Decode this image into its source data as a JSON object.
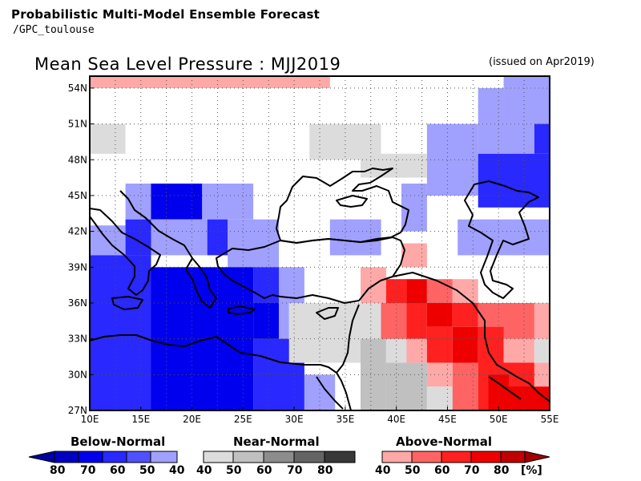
{
  "header": {
    "title": "Probabilistic Multi-Model Ensemble Forecast",
    "subtitle": "/GPC_toulouse"
  },
  "map": {
    "title": "Mean Sea Level Pressure : MJJ2019",
    "issued": "(issued on Apr2019)",
    "lon_range": [
      10,
      55
    ],
    "lat_range": [
      27,
      55
    ],
    "lon_ticks": [
      "10E",
      "15E",
      "20E",
      "25E",
      "30E",
      "35E",
      "40E",
      "45E",
      "50E",
      "55E"
    ],
    "lat_ticks": [
      "54N",
      "51N",
      "48N",
      "45N",
      "42N",
      "39N",
      "36N",
      "33N",
      "30N",
      "27N"
    ],
    "grid_step_lon": 2.5,
    "grid_step_lat": 3,
    "lon_tick_values": [
      10,
      15,
      20,
      25,
      30,
      35,
      40,
      45,
      50,
      55
    ],
    "lat_tick_values": [
      54,
      51,
      48,
      45,
      42,
      39,
      36,
      33,
      30,
      27
    ]
  },
  "colors": {
    "below": {
      "40": "#a0a0ff",
      "50": "#5050ff",
      "60": "#2828ff",
      "70": "#0000ee",
      "80": "#0000c0"
    },
    "near": {
      "40": "#dcdcdc",
      "50": "#c0c0c0",
      "60": "#8c8c8c",
      "70": "#646464",
      "80": "#383838"
    },
    "above": {
      "40": "#ffa8a8",
      "50": "#ff6464",
      "60": "#ff2020",
      "70": "#ee0000",
      "80": "#c00000"
    }
  },
  "chart_data": {
    "type": "heatmap",
    "cell_size_deg": [
      2.5,
      3
    ],
    "cells": [
      {
        "lon": [
          10,
          33.5
        ],
        "lat": [
          54,
          55
        ],
        "cat": "above",
        "p": 40
      },
      {
        "lon": [
          50.5,
          55
        ],
        "lat": [
          54,
          55
        ],
        "cat": "below",
        "p": 40
      },
      {
        "lon": [
          48,
          55
        ],
        "lat": [
          51,
          54
        ],
        "cat": "below",
        "p": 40
      },
      {
        "lon": [
          10,
          13.5
        ],
        "lat": [
          48.5,
          51
        ],
        "cat": "near",
        "p": 40
      },
      {
        "lon": [
          31.5,
          38.5
        ],
        "lat": [
          48,
          51
        ],
        "cat": "near",
        "p": 40
      },
      {
        "lon": [
          43,
          48
        ],
        "lat": [
          45,
          51
        ],
        "cat": "below",
        "p": 40
      },
      {
        "lon": [
          48,
          53.5
        ],
        "lat": [
          48.5,
          51
        ],
        "cat": "below",
        "p": 40
      },
      {
        "lon": [
          53.5,
          55
        ],
        "lat": [
          48.5,
          51
        ],
        "cat": "below",
        "p": 60
      },
      {
        "lon": [
          36.5,
          43
        ],
        "lat": [
          46.5,
          48.5
        ],
        "cat": "near",
        "p": 40
      },
      {
        "lon": [
          48,
          55
        ],
        "lat": [
          44,
          48.5
        ],
        "cat": "below",
        "p": 60
      },
      {
        "lon": [
          40.5,
          43
        ],
        "lat": [
          42,
          46
        ],
        "cat": "below",
        "p": 40
      },
      {
        "lon": [
          13.5,
          16
        ],
        "lat": [
          43,
          46
        ],
        "cat": "below",
        "p": 40
      },
      {
        "lon": [
          16,
          21
        ],
        "lat": [
          43,
          46
        ],
        "cat": "below",
        "p": 70
      },
      {
        "lon": [
          21,
          26
        ],
        "lat": [
          43,
          46
        ],
        "cat": "below",
        "p": 40
      },
      {
        "lon": [
          10,
          13.5
        ],
        "lat": [
          40,
          42.5
        ],
        "cat": "below",
        "p": 40
      },
      {
        "lon": [
          13.5,
          16
        ],
        "lat": [
          40,
          43
        ],
        "cat": "below",
        "p": 60
      },
      {
        "lon": [
          16,
          21.5
        ],
        "lat": [
          40,
          43
        ],
        "cat": "below",
        "p": 40
      },
      {
        "lon": [
          21.5,
          23.5
        ],
        "lat": [
          40,
          43
        ],
        "cat": "below",
        "p": 60
      },
      {
        "lon": [
          23.5,
          28.5
        ],
        "lat": [
          39,
          43
        ],
        "cat": "below",
        "p": 40
      },
      {
        "lon": [
          33.5,
          38.5
        ],
        "lat": [
          40,
          43
        ],
        "cat": "below",
        "p": 40
      },
      {
        "lon": [
          46,
          55
        ],
        "lat": [
          40,
          43
        ],
        "cat": "below",
        "p": 40
      },
      {
        "lon": [
          10,
          16
        ],
        "lat": [
          27,
          40
        ],
        "cat": "below",
        "p": 60
      },
      {
        "lon": [
          16,
          26
        ],
        "lat": [
          27,
          39
        ],
        "cat": "below",
        "p": 70
      },
      {
        "lon": [
          26,
          28.5
        ],
        "lat": [
          36,
          39
        ],
        "cat": "below",
        "p": 60
      },
      {
        "lon": [
          28.5,
          31
        ],
        "lat": [
          36,
          39
        ],
        "cat": "below",
        "p": 40
      },
      {
        "lon": [
          26,
          28.5
        ],
        "lat": [
          33,
          36
        ],
        "cat": "below",
        "p": 70
      },
      {
        "lon": [
          28.5,
          29.5
        ],
        "lat": [
          33,
          36
        ],
        "cat": "below",
        "p": 40
      },
      {
        "lon": [
          26,
          31
        ],
        "lat": [
          27,
          33
        ],
        "cat": "below",
        "p": 60
      },
      {
        "lon": [
          31,
          34
        ],
        "lat": [
          27,
          30
        ],
        "cat": "below",
        "p": 40
      },
      {
        "lon": [
          29.5,
          36.5
        ],
        "lat": [
          31,
          36
        ],
        "cat": "near",
        "p": 40
      },
      {
        "lon": [
          36.5,
          39.5
        ],
        "lat": [
          33,
          36
        ],
        "cat": "near",
        "p": 40
      },
      {
        "lon": [
          36.5,
          39
        ],
        "lat": [
          27,
          33
        ],
        "cat": "near",
        "p": 50
      },
      {
        "lon": [
          39,
          43
        ],
        "lat": [
          27,
          31
        ],
        "cat": "near",
        "p": 50
      },
      {
        "lon": [
          43,
          46
        ],
        "lat": [
          27,
          29
        ],
        "cat": "near",
        "p": 40
      },
      {
        "lon": [
          39,
          41.5
        ],
        "lat": [
          31,
          33
        ],
        "cat": "near",
        "p": 40
      },
      {
        "lon": [
          40.5,
          43
        ],
        "lat": [
          39,
          41
        ],
        "cat": "above",
        "p": 40
      },
      {
        "lon": [
          36.5,
          39
        ],
        "lat": [
          36,
          39
        ],
        "cat": "above",
        "p": 40
      },
      {
        "lon": [
          39,
          41
        ],
        "lat": [
          36,
          38
        ],
        "cat": "above",
        "p": 60
      },
      {
        "lon": [
          41,
          43
        ],
        "lat": [
          36,
          38
        ],
        "cat": "above",
        "p": 70
      },
      {
        "lon": [
          43,
          45.5
        ],
        "lat": [
          36,
          38
        ],
        "cat": "above",
        "p": 50
      },
      {
        "lon": [
          45.5,
          48
        ],
        "lat": [
          36,
          38
        ],
        "cat": "above",
        "p": 40
      },
      {
        "lon": [
          38.5,
          41
        ],
        "lat": [
          33,
          36
        ],
        "cat": "above",
        "p": 50
      },
      {
        "lon": [
          41,
          43
        ],
        "lat": [
          33,
          36
        ],
        "cat": "above",
        "p": 60
      },
      {
        "lon": [
          43,
          45.5
        ],
        "lat": [
          34,
          36
        ],
        "cat": "above",
        "p": 70
      },
      {
        "lon": [
          45.5,
          48
        ],
        "lat": [
          34,
          36
        ],
        "cat": "above",
        "p": 60
      },
      {
        "lon": [
          48,
          53.5
        ],
        "lat": [
          33,
          36
        ],
        "cat": "above",
        "p": 50
      },
      {
        "lon": [
          53.5,
          55
        ],
        "lat": [
          33,
          36
        ],
        "cat": "above",
        "p": 40
      },
      {
        "lon": [
          41,
          43
        ],
        "lat": [
          31,
          33
        ],
        "cat": "above",
        "p": 40
      },
      {
        "lon": [
          43,
          45.5
        ],
        "lat": [
          31,
          34
        ],
        "cat": "above",
        "p": 60
      },
      {
        "lon": [
          45.5,
          48
        ],
        "lat": [
          31,
          34
        ],
        "cat": "above",
        "p": 70
      },
      {
        "lon": [
          48,
          50.5
        ],
        "lat": [
          31,
          34
        ],
        "cat": "above",
        "p": 60
      },
      {
        "lon": [
          50.5,
          53.5
        ],
        "lat": [
          31,
          33
        ],
        "cat": "above",
        "p": 40
      },
      {
        "lon": [
          53.5,
          55
        ],
        "lat": [
          31,
          33
        ],
        "cat": "near",
        "p": 40
      },
      {
        "lon": [
          43,
          45.5
        ],
        "lat": [
          29,
          31
        ],
        "cat": "above",
        "p": 40
      },
      {
        "lon": [
          45.5,
          48
        ],
        "lat": [
          27,
          31
        ],
        "cat": "above",
        "p": 50
      },
      {
        "lon": [
          48,
          53.5
        ],
        "lat": [
          27,
          31
        ],
        "cat": "above",
        "p": 60
      },
      {
        "lon": [
          53.5,
          55
        ],
        "lat": [
          29,
          31
        ],
        "cat": "above",
        "p": 40
      },
      {
        "lon": [
          49,
          51
        ],
        "lat": [
          27,
          30
        ],
        "cat": "above",
        "p": 70
      },
      {
        "lon": [
          51,
          55
        ],
        "lat": [
          27,
          29
        ],
        "cat": "above",
        "p": 70
      }
    ]
  },
  "legend": {
    "below_label": "Below-Normal",
    "near_label": "Near-Normal",
    "above_label": "Above-Normal",
    "below_numbers": [
      "80",
      "70",
      "60",
      "50",
      "40"
    ],
    "near_numbers": [
      "40",
      "50",
      "60",
      "70",
      "80"
    ],
    "above_numbers": [
      "40",
      "50",
      "60",
      "70",
      "80"
    ],
    "unit": "[%]"
  }
}
